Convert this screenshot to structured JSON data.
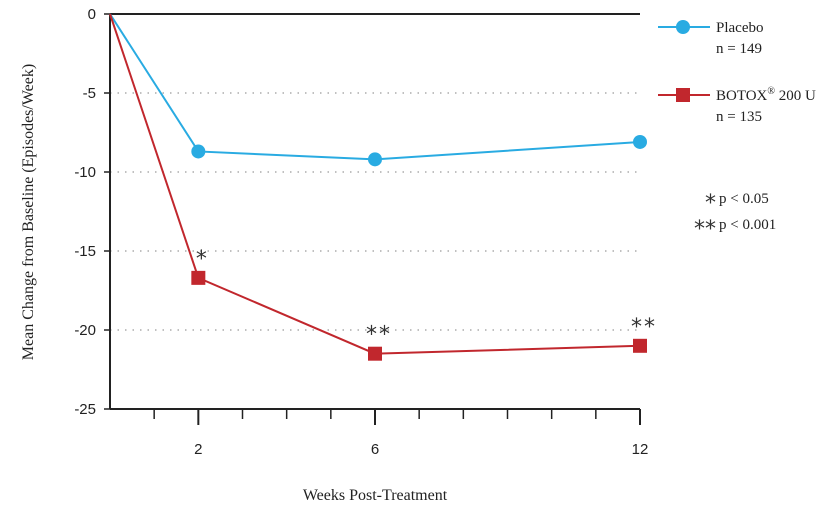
{
  "chart_data": {
    "type": "line",
    "title": "",
    "xlabel": "Weeks Post-Treatment",
    "ylabel": "Mean Change from Baseline (Episodes/Week)",
    "ylim": [
      -25,
      0
    ],
    "yticks": [
      0,
      -5,
      -10,
      -15,
      -20,
      -25
    ],
    "yticks_labels": [
      "0",
      "-5",
      "-10",
      "-15",
      "-20",
      "-25"
    ],
    "xlim": [
      0,
      12
    ],
    "xticks": [
      2,
      6,
      12
    ],
    "xticks_labels": [
      "2",
      "6",
      "12"
    ],
    "grid": "horizontal dotted",
    "legend_position": "right",
    "series": [
      {
        "name": "Placebo",
        "legend_n": "n = 149",
        "color": "#29abe2",
        "marker": "circle",
        "x": [
          0,
          2,
          6,
          12
        ],
        "y": [
          0,
          -8.7,
          -9.2,
          -8.1
        ]
      },
      {
        "name": "BOTOX® 200 U",
        "name_base": "BOTOX",
        "name_sup": "®",
        "name_rest": " 200 U",
        "legend_n": "n = 135",
        "color": "#c1272d",
        "marker": "square",
        "x": [
          0,
          2,
          6,
          12
        ],
        "y": [
          0,
          -16.7,
          -21.5,
          -21.0
        ]
      }
    ],
    "annotations": [
      {
        "x": 2,
        "text": "*"
      },
      {
        "x": 6,
        "text": "**"
      },
      {
        "x": 12,
        "text": "**"
      }
    ],
    "significance_key": [
      {
        "symbol": "*",
        "text": "p < 0.05"
      },
      {
        "symbol": "**",
        "text": "p < 0.001"
      }
    ]
  }
}
